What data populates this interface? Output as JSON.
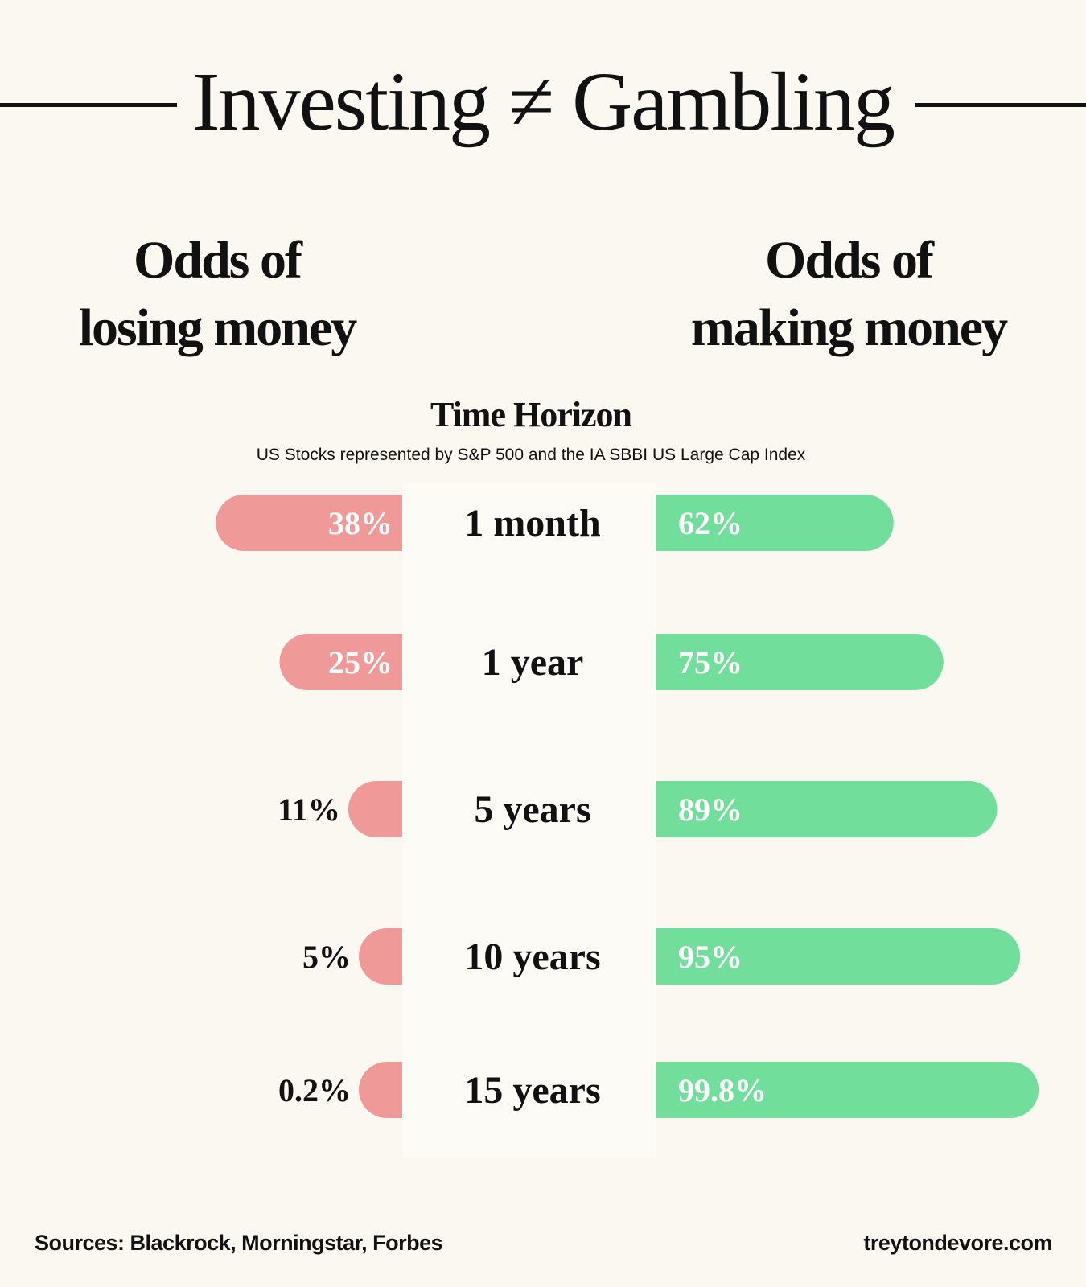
{
  "title": "Investing ≠ Gambling",
  "left_heading": [
    "Odds of",
    "losing money"
  ],
  "right_heading": [
    "Odds of",
    "making money"
  ],
  "footer": {
    "sources": "Sources: Blackrock, Morningstar, Forbes",
    "website": "treytondevore.com"
  },
  "colors": {
    "losing": "#ef9a98",
    "making": "#72de9c",
    "background": "#fbf7f1"
  },
  "chart_data": {
    "type": "bar",
    "title": "Time Horizon",
    "subtitle": "US Stocks represented by S&P 500 and the IA SBBI US Large Cap Index",
    "categories": [
      "1 month",
      "1 year",
      "5 years",
      "10 years",
      "15 years"
    ],
    "series": [
      {
        "name": "Odds of losing money",
        "values": [
          38,
          25,
          11,
          5,
          0.2
        ],
        "labels": [
          "38%",
          "25%",
          "11%",
          "5%",
          "0.2%"
        ]
      },
      {
        "name": "Odds of making money",
        "values": [
          62,
          75,
          89,
          95,
          99.8
        ],
        "labels": [
          "62%",
          "75%",
          "89%",
          "95%",
          "99.8%"
        ]
      }
    ],
    "xlim": [
      0,
      100
    ],
    "grid": false
  }
}
